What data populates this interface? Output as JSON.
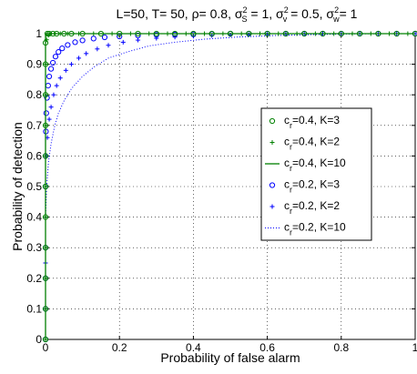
{
  "chart_data": {
    "type": "line",
    "title_parts": {
      "main": "L=50, T= 50, ρ= 0.8, σ",
      "s_sub": "S",
      "s_sup": "2",
      "s_val": " = 1, σ",
      "v_sub": "v",
      "v_sup": "2",
      "v_val": " = 0.5, σ",
      "w_sub": "w",
      "w_sup": "2",
      "w_val": "= 1"
    },
    "xlabel": "Probability of false alarm",
    "ylabel": "Probability of detection",
    "xlim": [
      0,
      1
    ],
    "ylim": [
      0,
      1
    ],
    "xticks": [
      "0",
      "0.2",
      "0.4",
      "0.6",
      "0.8",
      "1"
    ],
    "xtick_values": [
      0,
      0.2,
      0.4,
      0.6,
      0.8,
      1
    ],
    "yticks": [
      "0",
      "0.1",
      "0.2",
      "0.3",
      "0.4",
      "0.5",
      "0.6",
      "0.7",
      "0.8",
      "0.9",
      "1"
    ],
    "ytick_values": [
      0,
      0.1,
      0.2,
      0.3,
      0.4,
      0.5,
      0.6,
      0.7,
      0.8,
      0.9,
      1
    ],
    "grid": true,
    "legend_position": "right",
    "series": [
      {
        "name_parts": [
          "c",
          "r",
          "=0.4, K=3"
        ],
        "color": "#008000",
        "style": "circle",
        "x": [
          0,
          0,
          0,
          0,
          0,
          0,
          0,
          0,
          0,
          0,
          0,
          0.005,
          0.01,
          0.02,
          0.03,
          0.05,
          0.07,
          0.1,
          0.15,
          0.2,
          0.25,
          0.3,
          0.35,
          0.4,
          0.45,
          0.5,
          0.55,
          0.6,
          0.65,
          0.7,
          0.75,
          0.8,
          0.85,
          0.9,
          0.95,
          1
        ],
        "y": [
          0,
          0.1,
          0.2,
          0.3,
          0.4,
          0.5,
          0.6,
          0.7,
          0.8,
          0.9,
          0.97,
          1,
          1,
          1,
          1,
          1,
          1,
          1,
          1,
          1,
          1,
          1,
          1,
          1,
          1,
          1,
          1,
          1,
          1,
          1,
          1,
          1,
          1,
          1,
          1,
          1
        ]
      },
      {
        "name_parts": [
          "c",
          "r",
          "=0.4, K=2"
        ],
        "color": "#008000",
        "style": "plus",
        "x": [
          0,
          0,
          0,
          0,
          0,
          0,
          0,
          0,
          0,
          0,
          0.003,
          0.008,
          0.015,
          0.025,
          0.04,
          0.06,
          0.09,
          0.13,
          0.18,
          0.23,
          0.28,
          0.33,
          0.38,
          0.43,
          0.48,
          0.53,
          0.58,
          0.63,
          0.68,
          0.73,
          0.78,
          0.83,
          0.88,
          0.93,
          0.98
        ],
        "y": [
          0,
          0.1,
          0.2,
          0.3,
          0.4,
          0.5,
          0.6,
          0.7,
          0.8,
          0.9,
          0.98,
          0.995,
          1,
          1,
          1,
          1,
          1,
          1,
          1,
          1,
          1,
          1,
          1,
          1,
          1,
          1,
          1,
          1,
          1,
          1,
          1,
          1,
          1,
          1,
          1
        ]
      },
      {
        "name_parts": [
          "c",
          "r",
          "=0.4, K=10"
        ],
        "color": "#008000",
        "style": "line",
        "x": [
          0,
          0,
          0.002,
          1
        ],
        "y": [
          0,
          0.995,
          1,
          1
        ]
      },
      {
        "name_parts": [
          "c",
          "r",
          "=0.2, K=3"
        ],
        "color": "#0000ff",
        "style": "circle",
        "x": [
          0,
          0,
          0,
          0,
          0,
          0,
          0.001,
          0.002,
          0.004,
          0.007,
          0.01,
          0.015,
          0.02,
          0.027,
          0.035,
          0.045,
          0.06,
          0.08,
          0.1,
          0.13,
          0.16,
          0.2,
          0.25,
          0.3,
          0.35,
          0.4,
          0.45,
          0.5,
          0.55,
          0.6,
          0.65,
          0.7,
          0.75,
          0.8,
          0.85,
          0.9,
          0.95,
          1
        ],
        "y": [
          0,
          0.1,
          0.2,
          0.3,
          0.5,
          0.6,
          0.68,
          0.74,
          0.79,
          0.83,
          0.86,
          0.885,
          0.905,
          0.925,
          0.94,
          0.952,
          0.963,
          0.972,
          0.978,
          0.984,
          0.988,
          0.991,
          0.994,
          0.996,
          0.997,
          0.998,
          0.999,
          1,
          1,
          1,
          1,
          1,
          1,
          1,
          1,
          1,
          1,
          1
        ]
      },
      {
        "name_parts": [
          "c",
          "r",
          "=0.2, K=2"
        ],
        "color": "#0000ff",
        "style": "plus",
        "x": [
          0,
          0,
          0,
          0,
          0,
          0.002,
          0.005,
          0.01,
          0.015,
          0.022,
          0.03,
          0.04,
          0.055,
          0.07,
          0.09,
          0.11,
          0.14,
          0.17,
          0.21,
          0.25,
          0.3,
          0.35,
          0.4,
          0.45,
          0.5,
          0.55,
          0.6,
          0.65,
          0.7,
          0.75,
          0.8,
          0.85,
          0.9,
          0.95,
          1
        ],
        "y": [
          0,
          0.1,
          0.25,
          0.4,
          0.5,
          0.6,
          0.66,
          0.72,
          0.76,
          0.8,
          0.83,
          0.855,
          0.88,
          0.9,
          0.92,
          0.935,
          0.95,
          0.962,
          0.972,
          0.979,
          0.985,
          0.989,
          0.992,
          0.994,
          0.996,
          0.997,
          0.998,
          0.999,
          1,
          1,
          1,
          1,
          1,
          1,
          1
        ]
      },
      {
        "name_parts": [
          "c",
          "r",
          "=0.2, K=10"
        ],
        "color": "#0000ff",
        "style": "dotted",
        "x": [
          0,
          0,
          0,
          0.003,
          0.008,
          0.015,
          0.025,
          0.035,
          0.05,
          0.07,
          0.1,
          0.13,
          0.17,
          0.22,
          0.28,
          0.35,
          0.43,
          0.52,
          0.62,
          0.72,
          0.82,
          0.92,
          1
        ],
        "y": [
          0,
          0.2,
          0.4,
          0.5,
          0.58,
          0.64,
          0.7,
          0.74,
          0.78,
          0.82,
          0.86,
          0.89,
          0.92,
          0.94,
          0.96,
          0.972,
          0.982,
          0.989,
          0.994,
          0.997,
          0.999,
          1,
          1
        ]
      }
    ]
  }
}
